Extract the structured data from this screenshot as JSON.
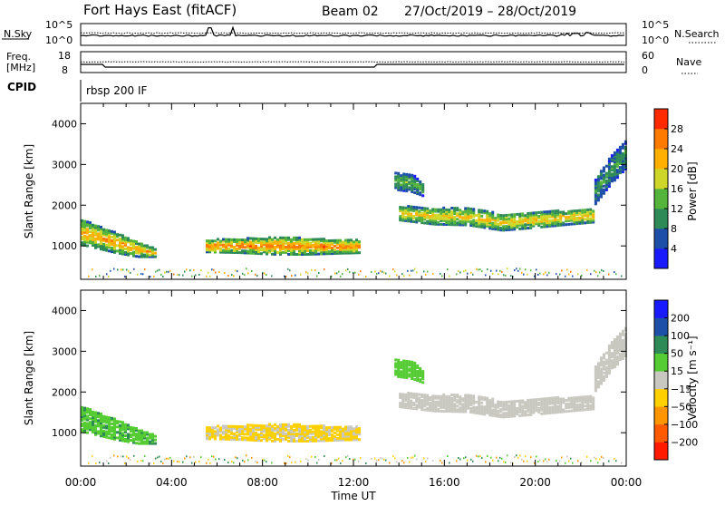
{
  "header": {
    "station": "Fort Hays East (fitACF)",
    "beam": "Beam 02",
    "date_range": "27/Oct/2019 – 28/Oct/2019"
  },
  "panels": {
    "noise_sky_label": "N.Sky",
    "noise_search_label": "N.Search",
    "noise_left_ticks": [
      "10^5",
      "10^0"
    ],
    "noise_right_ticks": [
      "10^5",
      "10^0"
    ],
    "freq_label_line1": "Freq.",
    "freq_label_line2": "[MHz]",
    "freq_ticks": [
      "18",
      "8"
    ],
    "nave_label": "Nave",
    "nave_ticks": [
      "60",
      "0"
    ],
    "cpid_label": "CPID",
    "cpid_value": "rbsp 200 IF"
  },
  "x_axis": {
    "label": "Time UT",
    "ticks": [
      "00:00",
      "04:00",
      "08:00",
      "12:00",
      "16:00",
      "20:00",
      "00:00"
    ]
  },
  "power_panel": {
    "ylabel": "Slant Range [km]",
    "yticks": [
      "1000",
      "2000",
      "3000",
      "4000"
    ],
    "cbar_label": "Power [dB]",
    "cbar_ticks": [
      "4",
      "8",
      "12",
      "16",
      "20",
      "24",
      "28"
    ],
    "cbar_colors": [
      "#1a1aff",
      "#1e4fa8",
      "#2e8b57",
      "#55b43c",
      "#cfd62a",
      "#ffb000",
      "#ff7a00",
      "#ff2a00"
    ]
  },
  "velocity_panel": {
    "ylabel": "Slant Range [km]",
    "yticks": [
      "1000",
      "2000",
      "3000",
      "4000"
    ],
    "cbar_label": "Velocity [m s⁻¹]",
    "cbar_ticks": [
      "200",
      "100",
      "50",
      "15",
      "−15",
      "−50",
      "−100",
      "−200"
    ],
    "cbar_colors": [
      "#1a1aff",
      "#1e4fa8",
      "#2e8b57",
      "#55cc33",
      "#c8c8c0",
      "#ffd000",
      "#ff9500",
      "#ff5a00",
      "#ff1a00"
    ]
  },
  "chart_data": {
    "type": "heatmap",
    "x_range_hours": [
      0,
      24
    ],
    "y_range_km": [
      180,
      4500
    ],
    "power_regions": [
      {
        "name": "early_band",
        "t": [
          0,
          0.6,
          1.5,
          2.5,
          3.3
        ],
        "r_lo": [
          1000,
          920,
          800,
          700,
          700
        ],
        "r_hi": [
          1600,
          1500,
          1300,
          1050,
          900
        ],
        "level_dB": 20
      },
      {
        "name": "midday_band",
        "t": [
          5.5,
          7,
          8.5,
          10,
          11,
          12.3
        ],
        "r_lo": [
          820,
          800,
          760,
          760,
          780,
          800
        ],
        "r_hi": [
          1120,
          1150,
          1180,
          1160,
          1120,
          1110
        ],
        "level_dB": 22
      },
      {
        "name": "afternoon_band",
        "t": [
          14,
          15.5,
          17,
          18.5,
          20,
          21.5,
          22.5
        ],
        "r_lo": [
          1600,
          1500,
          1480,
          1350,
          1420,
          1500,
          1550
        ],
        "r_hi": [
          1950,
          1900,
          1900,
          1750,
          1800,
          1850,
          1900
        ],
        "level_dB": 18
      },
      {
        "name": "high_patch",
        "t": [
          13.8,
          14.5,
          15
        ],
        "r_lo": [
          2350,
          2300,
          2200
        ],
        "r_hi": [
          2800,
          2750,
          2500
        ],
        "level_dB": 12
      },
      {
        "name": "late_rise",
        "t": [
          22.6,
          23.3,
          24
        ],
        "r_lo": [
          2000,
          2500,
          2900
        ],
        "r_hi": [
          2600,
          3200,
          3600
        ],
        "level_dB": 10
      }
    ],
    "velocity_regions": [
      {
        "name": "early_band",
        "velocity_ms": 40
      },
      {
        "name": "midday_band",
        "velocity_ms": -20
      },
      {
        "name": "afternoon_band",
        "velocity_ms": 0
      },
      {
        "name": "high_patch",
        "velocity_ms": 30
      },
      {
        "name": "late_rise",
        "velocity_ms": 0
      }
    ]
  }
}
